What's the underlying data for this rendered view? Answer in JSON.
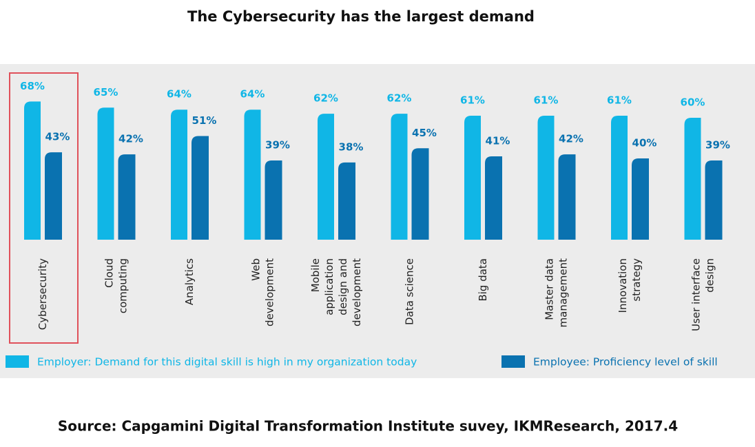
{
  "chart_data": {
    "type": "bar",
    "title": "The Cybersecurity has the largest demand",
    "categories": [
      "Cybersecurity",
      "Cloud\ncomputing",
      "Analytics",
      "Web\ndevelopment",
      "Mobile\napplication\ndesign and\ndevelopment",
      "Data science",
      "Big data",
      "Master data\nmanagement",
      "Innovation\nstrategy",
      "User interface\ndesign"
    ],
    "series": [
      {
        "name": "Employer: Demand for this digital skill is high in my organization today",
        "color": "#10b6e6",
        "values": [
          68,
          65,
          64,
          64,
          62,
          62,
          61,
          61,
          61,
          60
        ],
        "value_labels": [
          "68%",
          "65%",
          "64%",
          "64%",
          "62%",
          "62%",
          "61%",
          "61%",
          "61%",
          "60%"
        ]
      },
      {
        "name": "Employee: Proficiency level of skill",
        "color": "#0a72b0",
        "values": [
          43,
          42,
          51,
          39,
          38,
          45,
          41,
          42,
          40,
          39
        ],
        "value_labels": [
          "43%",
          "42%",
          "51%",
          "39%",
          "38%",
          "45%",
          "41%",
          "42%",
          "40%",
          "39%"
        ]
      }
    ],
    "source": "Source: Capgamini Digital Transformation Institute suvey, IKMResearch, 2017.4"
  }
}
